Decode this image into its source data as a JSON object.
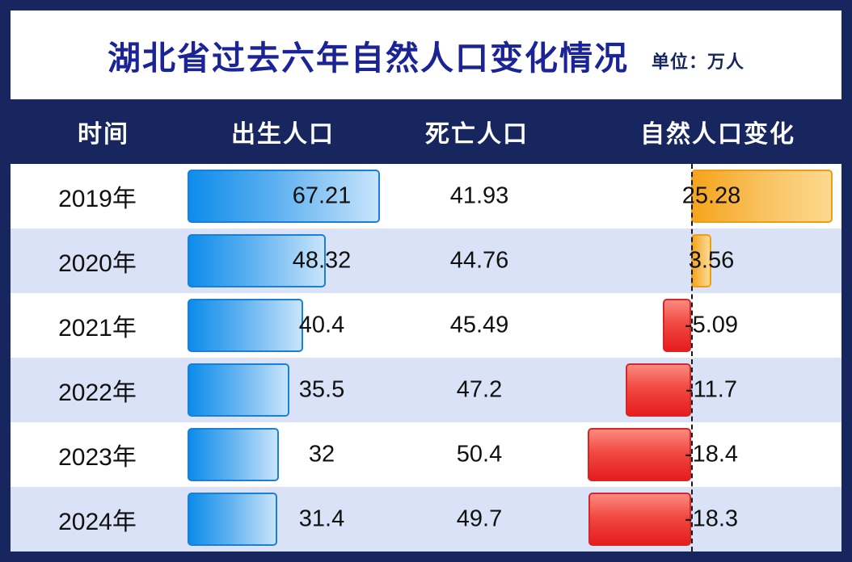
{
  "header": {
    "title": "湖北省过去六年自然人口变化情况",
    "unit": "单位：万人"
  },
  "table": {
    "columns": [
      "时间",
      "出生人口",
      "死亡人口",
      "自然人口变化"
    ],
    "rows": [
      {
        "year": "2019年",
        "birth": "67.21",
        "death": "41.93",
        "change": "25.28"
      },
      {
        "year": "2020年",
        "birth": "48.32",
        "death": "44.76",
        "change": "3.56"
      },
      {
        "year": "2021年",
        "birth": "40.4",
        "death": "45.49",
        "change": "-5.09"
      },
      {
        "year": "2022年",
        "birth": "35.5",
        "death": "47.2",
        "change": "-11.7"
      },
      {
        "year": "2023年",
        "birth": "32",
        "death": "50.4",
        "change": "-18.4"
      },
      {
        "year": "2024年",
        "birth": "31.4",
        "death": "49.7",
        "change": "-18.3"
      }
    ]
  },
  "colors": {
    "frame_navy": "#17265e",
    "title_blue": "#1b2496",
    "alt_row": "#d9e2f7",
    "birth_bar": "#0d8ceb",
    "positive_bar": "#f6a41c",
    "negative_bar": "#e51d1d"
  },
  "chart_data": {
    "type": "bar",
    "title": "湖北省过去六年自然人口变化情况",
    "unit": "万人",
    "categories": [
      "2019年",
      "2020年",
      "2021年",
      "2022年",
      "2023年",
      "2024年"
    ],
    "series": [
      {
        "name": "出生人口",
        "values": [
          67.21,
          48.32,
          40.4,
          35.5,
          32,
          31.4
        ]
      },
      {
        "name": "死亡人口",
        "values": [
          41.93,
          44.76,
          45.49,
          47.2,
          50.4,
          49.7
        ]
      },
      {
        "name": "自然人口变化",
        "values": [
          25.28,
          3.56,
          -5.09,
          -11.7,
          -18.4,
          -18.3
        ]
      }
    ],
    "layout": "table-with-inline-bars, birth bars anchored left in 出生人口 column, change bars anchored on dashed zero axis (positive right/orange, negative left/red)",
    "legend_position": "none",
    "grid": false
  }
}
